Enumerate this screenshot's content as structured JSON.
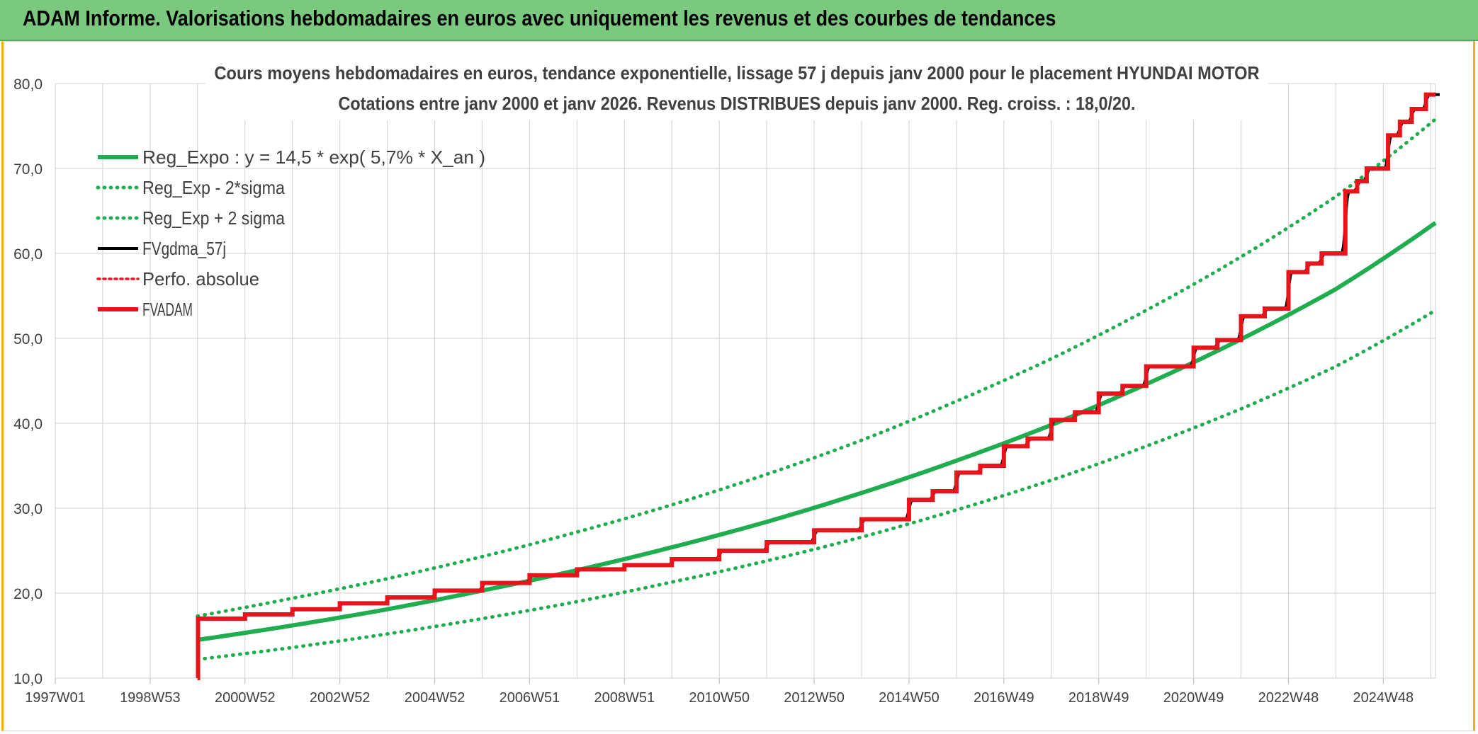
{
  "banner": {
    "title": "ADAM Informe. Valorisations hebdomadaires en euros avec uniquement les revenus et des courbes de tendances"
  },
  "colors": {
    "banner": "#7bc87f",
    "trend": "#1fad4f",
    "fv": "#000000",
    "adam": "#e8141c",
    "grid": "#d9d9d9"
  },
  "chart_data": {
    "type": "line",
    "title_line1": "Cours moyens hebdomadaires en euros, tendance exponentielle, lissage 57 j depuis janv 2000 pour le placement HYUNDAI MOTOR",
    "title_line2": "Cotations entre janv 2000 et janv 2026. Revenus DISTRIBUES depuis janv 2000. Reg. croiss. : 18,0/20.",
    "x_range": [
      1997.0,
      2026.1
    ],
    "ylim": [
      10,
      80
    ],
    "y_ticks": [
      10,
      20,
      30,
      40,
      50,
      60,
      70,
      80
    ],
    "y_tick_labels": [
      "10,0",
      "20,0",
      "30,0",
      "40,0",
      "50,0",
      "60,0",
      "70,0",
      "80,0"
    ],
    "x_ticks": [
      {
        "x": 1997.0,
        "label": "1997W01"
      },
      {
        "x": 1999.0,
        "label": "1998W53"
      },
      {
        "x": 2001.0,
        "label": "2000W52"
      },
      {
        "x": 2003.0,
        "label": "2002W52"
      },
      {
        "x": 2005.0,
        "label": "2004W52"
      },
      {
        "x": 2007.0,
        "label": "2006W51"
      },
      {
        "x": 2009.0,
        "label": "2008W51"
      },
      {
        "x": 2011.0,
        "label": "2010W50"
      },
      {
        "x": 2013.0,
        "label": "2012W50"
      },
      {
        "x": 2015.0,
        "label": "2014W50"
      },
      {
        "x": 2017.0,
        "label": "2016W49"
      },
      {
        "x": 2019.0,
        "label": "2018W49"
      },
      {
        "x": 2021.0,
        "label": "2020W49"
      },
      {
        "x": 2023.0,
        "label": "2022W48"
      },
      {
        "x": 2025.0,
        "label": "2024W48"
      }
    ],
    "legend": [
      {
        "label": "Reg_Expo : y = 14,5 * exp( 5,7% *  X_an )",
        "color": "#1fad4f",
        "style": "solid"
      },
      {
        "label": "Reg_Exp - 2*sigma",
        "color": "#1fad4f",
        "style": "dotted"
      },
      {
        "label": "Reg_Exp + 2 sigma",
        "color": "#1fad4f",
        "style": "dotted"
      },
      {
        "label": "FVgdma_57j",
        "color": "#000000",
        "style": "solid"
      },
      {
        "label": "Perfo. absolue",
        "color": "#e8141c",
        "style": "dotted"
      },
      {
        "label": "FVADAM",
        "color": "#e8141c",
        "style": "solid"
      }
    ],
    "series": [
      {
        "name": "Reg_Expo",
        "x": [
          2000.0,
          2002.0,
          2004.0,
          2006.0,
          2008.0,
          2010.0,
          2012.0,
          2014.0,
          2016.0,
          2018.0,
          2020.0,
          2022.0,
          2024.0,
          2026.1
        ],
        "y": [
          14.5,
          16.2,
          18.1,
          20.3,
          22.7,
          25.4,
          28.4,
          31.8,
          35.6,
          39.8,
          44.6,
          49.9,
          55.8,
          63.6
        ]
      },
      {
        "name": "Reg_Exp - 2*sigma",
        "x": [
          2000.0,
          2002.0,
          2004.0,
          2006.0,
          2008.0,
          2010.0,
          2012.0,
          2014.0,
          2016.0,
          2018.0,
          2020.0,
          2022.0,
          2024.0,
          2026.1
        ],
        "y": [
          12.2,
          13.6,
          15.2,
          17.0,
          19.0,
          21.3,
          23.8,
          26.6,
          29.8,
          33.3,
          37.3,
          41.7,
          46.7,
          53.3
        ]
      },
      {
        "name": "Reg_Exp + 2 sigma",
        "x": [
          2000.0,
          2002.0,
          2004.0,
          2006.0,
          2008.0,
          2010.0,
          2012.0,
          2014.0,
          2016.0,
          2018.0,
          2020.0,
          2022.0,
          2024.0,
          2026.1
        ],
        "y": [
          17.3,
          19.4,
          21.7,
          24.3,
          27.2,
          30.4,
          34.0,
          38.0,
          42.6,
          47.6,
          53.3,
          59.6,
          66.7,
          75.8
        ]
      },
      {
        "name": "FVADAM",
        "steps": [
          {
            "x": 2000.0,
            "y": 10.0
          },
          {
            "x": 2000.01,
            "y": 17.0
          },
          {
            "x": 2001.0,
            "y": 17.5
          },
          {
            "x": 2002.0,
            "y": 18.1
          },
          {
            "x": 2003.0,
            "y": 18.8
          },
          {
            "x": 2004.0,
            "y": 19.5
          },
          {
            "x": 2005.0,
            "y": 20.3
          },
          {
            "x": 2006.0,
            "y": 21.2
          },
          {
            "x": 2007.0,
            "y": 22.1
          },
          {
            "x": 2008.0,
            "y": 22.8
          },
          {
            "x": 2009.0,
            "y": 23.3
          },
          {
            "x": 2010.0,
            "y": 24.0
          },
          {
            "x": 2011.0,
            "y": 25.0
          },
          {
            "x": 2012.0,
            "y": 26.0
          },
          {
            "x": 2013.0,
            "y": 27.4
          },
          {
            "x": 2014.0,
            "y": 28.7
          },
          {
            "x": 2015.0,
            "y": 31.0
          },
          {
            "x": 2015.5,
            "y": 32.0
          },
          {
            "x": 2016.0,
            "y": 34.2
          },
          {
            "x": 2016.5,
            "y": 35.0
          },
          {
            "x": 2017.0,
            "y": 37.3
          },
          {
            "x": 2017.5,
            "y": 38.2
          },
          {
            "x": 2018.0,
            "y": 40.4
          },
          {
            "x": 2018.5,
            "y": 41.3
          },
          {
            "x": 2019.0,
            "y": 43.5
          },
          {
            "x": 2019.5,
            "y": 44.4
          },
          {
            "x": 2020.0,
            "y": 46.7
          },
          {
            "x": 2021.0,
            "y": 48.9
          },
          {
            "x": 2021.5,
            "y": 49.8
          },
          {
            "x": 2022.0,
            "y": 52.6
          },
          {
            "x": 2022.5,
            "y": 53.5
          },
          {
            "x": 2023.0,
            "y": 57.8
          },
          {
            "x": 2023.4,
            "y": 58.8
          },
          {
            "x": 2023.7,
            "y": 60.0
          },
          {
            "x": 2024.2,
            "y": 67.3
          },
          {
            "x": 2024.45,
            "y": 68.5
          },
          {
            "x": 2024.65,
            "y": 70.0
          },
          {
            "x": 2025.1,
            "y": 73.9
          },
          {
            "x": 2025.35,
            "y": 75.5
          },
          {
            "x": 2025.6,
            "y": 77.0
          },
          {
            "x": 2025.9,
            "y": 78.7
          },
          {
            "x": 2026.1,
            "y": 78.7
          }
        ]
      }
    ]
  }
}
